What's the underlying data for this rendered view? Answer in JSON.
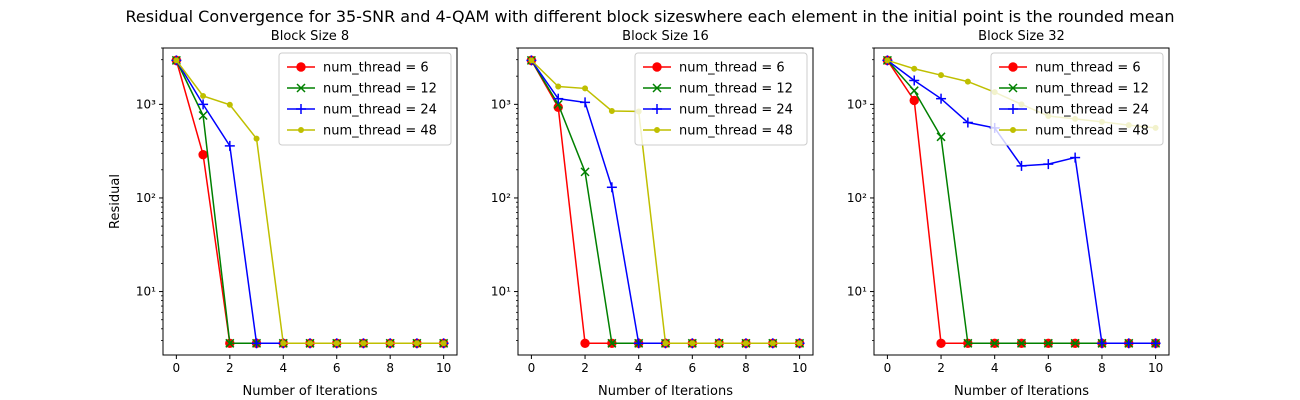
{
  "figure": {
    "suptitle": "Residual Convergence for 35-SNR and 4-QAM with different block sizeswhere each element in the initial point is the rounded mean"
  },
  "chart_data": [
    {
      "type": "line",
      "title": "Block Size 8",
      "xlabel": "Number of Iterations",
      "ylabel": "Residual",
      "yscale": "log",
      "xlim": [
        -0.5,
        10.5
      ],
      "ylim": [
        2.1,
        4000
      ],
      "xticks": [
        0,
        2,
        4,
        6,
        8,
        10
      ],
      "yticks": [
        10,
        100,
        1000
      ],
      "yticklabels": [
        "10¹",
        "10²",
        "10³"
      ],
      "legend": "top-right",
      "x": [
        0,
        1,
        2,
        3,
        4,
        5,
        6,
        7,
        8,
        9,
        10
      ],
      "series": [
        {
          "name": "num_thread = 6",
          "color": "#ff0000",
          "marker": "circle",
          "values": [
            2950,
            290,
            2.8,
            2.8,
            2.8,
            2.8,
            2.8,
            2.8,
            2.8,
            2.8,
            2.8
          ]
        },
        {
          "name": "num_thread = 12",
          "color": "#008000",
          "marker": "x",
          "values": [
            2950,
            760,
            2.8,
            2.8,
            2.8,
            2.8,
            2.8,
            2.8,
            2.8,
            2.8,
            2.8
          ]
        },
        {
          "name": "num_thread = 24",
          "color": "#0000ff",
          "marker": "plus",
          "values": [
            2950,
            1000,
            360,
            2.8,
            2.8,
            2.8,
            2.8,
            2.8,
            2.8,
            2.8,
            2.8
          ]
        },
        {
          "name": "num_thread = 48",
          "color": "#bfbf00",
          "marker": "point",
          "values": [
            2950,
            1230,
            990,
            430,
            2.8,
            2.8,
            2.8,
            2.8,
            2.8,
            2.8,
            2.8
          ]
        }
      ]
    },
    {
      "type": "line",
      "title": "Block Size 16",
      "xlabel": "Number of Iterations",
      "ylabel": "",
      "yscale": "log",
      "xlim": [
        -0.5,
        10.5
      ],
      "ylim": [
        2.1,
        4000
      ],
      "xticks": [
        0,
        2,
        4,
        6,
        8,
        10
      ],
      "yticks": [
        10,
        100,
        1000
      ],
      "yticklabels": [
        "10¹",
        "10²",
        "10³"
      ],
      "legend": "top-right",
      "x": [
        0,
        1,
        2,
        3,
        4,
        5,
        6,
        7,
        8,
        9,
        10
      ],
      "series": [
        {
          "name": "num_thread = 6",
          "color": "#ff0000",
          "marker": "circle",
          "values": [
            2950,
            930,
            2.8,
            2.8,
            2.8,
            2.8,
            2.8,
            2.8,
            2.8,
            2.8,
            2.8
          ]
        },
        {
          "name": "num_thread = 12",
          "color": "#008000",
          "marker": "x",
          "values": [
            2950,
            1000,
            190,
            2.8,
            2.8,
            2.8,
            2.8,
            2.8,
            2.8,
            2.8,
            2.8
          ]
        },
        {
          "name": "num_thread = 24",
          "color": "#0000ff",
          "marker": "plus",
          "values": [
            2950,
            1150,
            1050,
            130,
            2.8,
            2.8,
            2.8,
            2.8,
            2.8,
            2.8,
            2.8
          ]
        },
        {
          "name": "num_thread = 48",
          "color": "#bfbf00",
          "marker": "point",
          "values": [
            2950,
            1550,
            1480,
            850,
            840,
            2.8,
            2.8,
            2.8,
            2.8,
            2.8,
            2.8
          ]
        }
      ]
    },
    {
      "type": "line",
      "title": "Block Size 32",
      "xlabel": "Number of Iterations",
      "ylabel": "",
      "yscale": "log",
      "xlim": [
        -0.5,
        10.5
      ],
      "ylim": [
        2.1,
        4000
      ],
      "xticks": [
        0,
        2,
        4,
        6,
        8,
        10
      ],
      "yticks": [
        10,
        100,
        1000
      ],
      "yticklabels": [
        "10¹",
        "10²",
        "10³"
      ],
      "legend": "top-right",
      "x": [
        0,
        1,
        2,
        3,
        4,
        5,
        6,
        7,
        8,
        9,
        10
      ],
      "series": [
        {
          "name": "num_thread = 6",
          "color": "#ff0000",
          "marker": "circle",
          "values": [
            2950,
            1100,
            2.8,
            2.8,
            2.8,
            2.8,
            2.8,
            2.8,
            2.8,
            2.8,
            2.8
          ]
        },
        {
          "name": "num_thread = 12",
          "color": "#008000",
          "marker": "x",
          "values": [
            2950,
            1400,
            450,
            2.8,
            2.8,
            2.8,
            2.8,
            2.8,
            2.8,
            2.8,
            2.8
          ]
        },
        {
          "name": "num_thread = 24",
          "color": "#0000ff",
          "marker": "plus",
          "values": [
            2950,
            1800,
            1150,
            640,
            560,
            220,
            230,
            270,
            2.8,
            2.8,
            2.8
          ]
        },
        {
          "name": "num_thread = 48",
          "color": "#bfbf00",
          "marker": "point",
          "values": [
            2950,
            2400,
            2050,
            1750,
            1350,
            1000,
            750,
            700,
            650,
            600,
            560
          ]
        }
      ]
    }
  ]
}
